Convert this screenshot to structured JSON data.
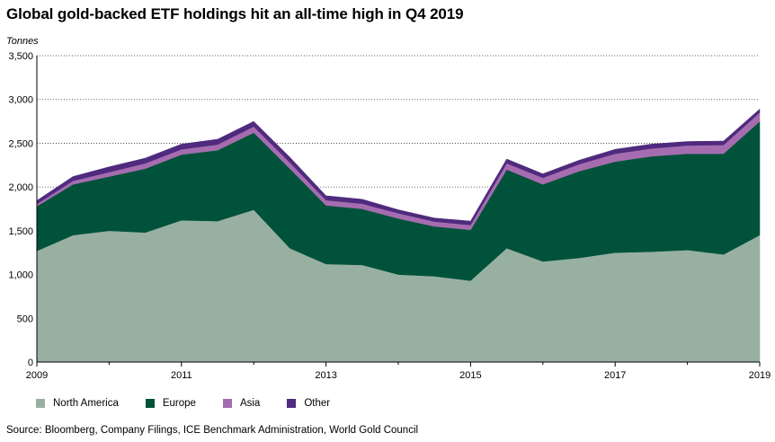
{
  "title": "Global gold-backed ETF holdings hit an all-time high in Q4 2019",
  "unit_label": "Tonnes",
  "source": "Source: Bloomberg, Company Filings, ICE Benchmark Administration, World Gold Council",
  "chart_data": {
    "type": "area",
    "stacked": true,
    "title": "Global gold-backed ETF holdings hit an all-time high in Q4 2019",
    "ylabel": "Tonnes",
    "xlabel": "",
    "ylim": [
      0,
      3500
    ],
    "xlim": [
      2009,
      2019
    ],
    "y_ticks": [
      0,
      500,
      1000,
      1500,
      2000,
      2500,
      3000,
      3500
    ],
    "y_tick_labels": [
      "0",
      "500",
      "1,000",
      "1,500",
      "2,000",
      "2,500",
      "3,000",
      "3,500"
    ],
    "x_ticks": [
      2009,
      2011,
      2013,
      2015,
      2017,
      2019
    ],
    "x_tick_labels": [
      "2009",
      "2011",
      "2013",
      "2015",
      "2017",
      "2019"
    ],
    "grid": "horizontal dotted",
    "legend": "bottom",
    "x": [
      2009.0,
      2009.5,
      2010.0,
      2010.5,
      2011.0,
      2011.5,
      2012.0,
      2012.5,
      2013.0,
      2013.5,
      2014.0,
      2014.5,
      2015.0,
      2015.5,
      2016.0,
      2016.5,
      2017.0,
      2017.5,
      2018.0,
      2018.5,
      2019.0
    ],
    "series": [
      {
        "name": "North America",
        "color": "#98b0a2",
        "values": [
          1270,
          1450,
          1500,
          1480,
          1620,
          1610,
          1740,
          1300,
          1120,
          1110,
          1000,
          980,
          930,
          1300,
          1150,
          1190,
          1250,
          1260,
          1280,
          1230,
          1450
        ]
      },
      {
        "name": "Europe",
        "color": "#00523a",
        "values": [
          510,
          580,
          620,
          730,
          750,
          810,
          880,
          910,
          670,
          640,
          640,
          570,
          580,
          900,
          880,
          990,
          1040,
          1090,
          1100,
          1150,
          1300
        ]
      },
      {
        "name": "Asia",
        "color": "#a56daf",
        "values": [
          25,
          40,
          50,
          60,
          60,
          65,
          70,
          70,
          60,
          60,
          60,
          55,
          55,
          70,
          75,
          80,
          90,
          90,
          95,
          100,
          100
        ]
      },
      {
        "name": "Other",
        "color": "#4f2a7e",
        "values": [
          40,
          50,
          60,
          60,
          60,
          60,
          60,
          60,
          50,
          50,
          40,
          40,
          45,
          50,
          45,
          45,
          50,
          50,
          45,
          45,
          40
        ]
      }
    ]
  }
}
